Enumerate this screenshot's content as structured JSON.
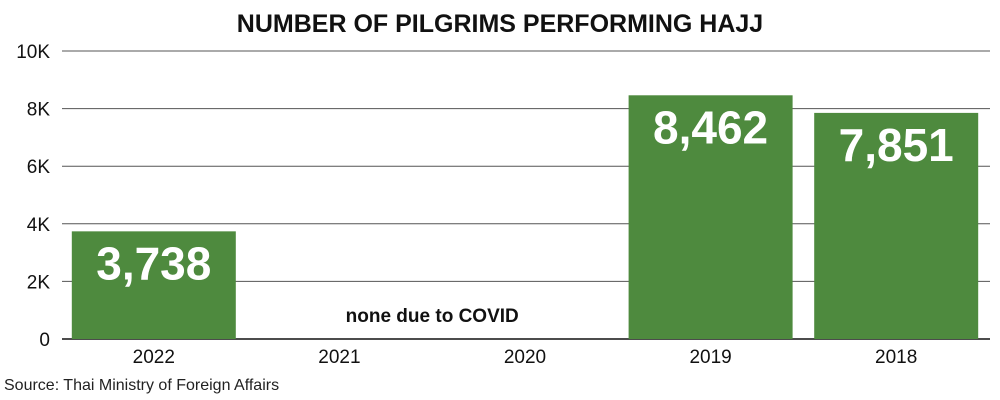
{
  "chart_data": {
    "type": "bar",
    "title": "NUMBER OF PILGRIMS PERFORMING HAJJ",
    "categories": [
      "2022",
      "2021",
      "2020",
      "2019",
      "2018"
    ],
    "values": [
      3738,
      0,
      0,
      8462,
      7851
    ],
    "data_labels": [
      "3,738",
      "",
      "",
      "8,462",
      "7,851"
    ],
    "ylim": [
      0,
      10000
    ],
    "yticks": [
      0,
      2000,
      4000,
      6000,
      8000,
      10000
    ],
    "ytick_labels": [
      "0",
      "2K",
      "4K",
      "6K",
      "8K",
      "10K"
    ],
    "xlabel": "",
    "ylabel": "",
    "grid": true,
    "legend": "none",
    "annotation": "none due to COVID",
    "source": "Source: Thai Ministry of Foreign Affairs",
    "bar_color": "#4e8a3e"
  }
}
